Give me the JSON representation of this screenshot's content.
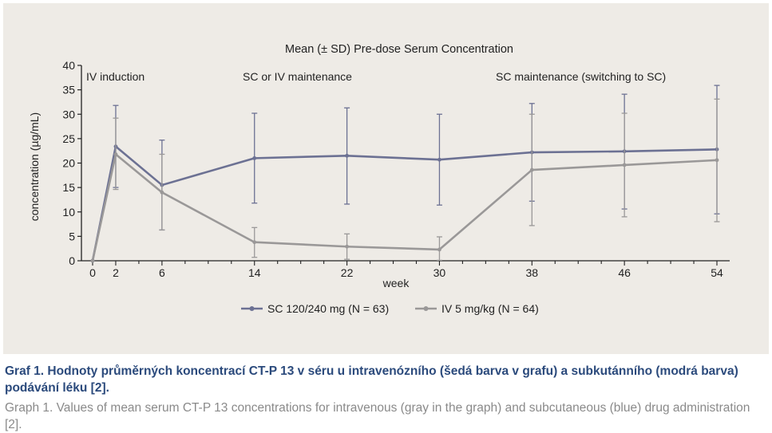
{
  "chart_data": {
    "type": "line",
    "title": "Mean (± SD) Pre-dose Serum Concentration",
    "xlabel": "week",
    "ylabel": "concentration (µg/mL)",
    "xticks": [
      0,
      2,
      6,
      14,
      22,
      30,
      38,
      46,
      54
    ],
    "yticks": [
      0,
      5,
      10,
      15,
      20,
      25,
      30,
      35,
      40
    ],
    "xlim": [
      0,
      54
    ],
    "ylim": [
      0,
      40
    ],
    "annotations": [
      "IV induction",
      "SC or IV maintenance",
      "SC maintenance (switching to SC)"
    ],
    "legend_position": "bottom-center",
    "series": [
      {
        "name": "SC 120/240 mg (N = 63)",
        "color": "#6c7193",
        "x": [
          0,
          2,
          6,
          14,
          22,
          30,
          38,
          46,
          54
        ],
        "y": [
          0,
          23.4,
          15.5,
          21.0,
          21.5,
          20.7,
          22.2,
          22.4,
          22.8
        ],
        "upper": [
          0,
          31.8,
          24.7,
          30.2,
          31.3,
          30.0,
          32.2,
          34.1,
          35.9
        ],
        "lower": [
          0,
          15.0,
          6.3,
          11.8,
          11.6,
          11.4,
          12.2,
          10.6,
          9.6
        ]
      },
      {
        "name": "IV 5 mg/kg (N = 64)",
        "color": "#9a9898",
        "x": [
          0,
          2,
          6,
          14,
          22,
          30,
          38,
          46,
          54
        ],
        "y": [
          0,
          21.8,
          14.0,
          3.8,
          2.9,
          2.3,
          18.6,
          19.6,
          20.6
        ],
        "upper": [
          0,
          29.2,
          21.8,
          6.8,
          5.5,
          4.9,
          30.0,
          30.2,
          33.1
        ],
        "lower": [
          0,
          14.6,
          6.3,
          0.7,
          0.3,
          0.1,
          7.2,
          9.0,
          8.0
        ]
      }
    ]
  },
  "caption": {
    "cz": "Graf 1. Hodnoty průměrných koncentrací CT-P 13 v séru u intravenózního (šedá barva v grafu) a subkutánního (modrá barva) podávání léku [2].",
    "en": "Graph 1. Values of mean serum CT-P 13 concentrations for intravenous (gray in the graph) and subcutaneous (blue) drug administration [2]."
  }
}
